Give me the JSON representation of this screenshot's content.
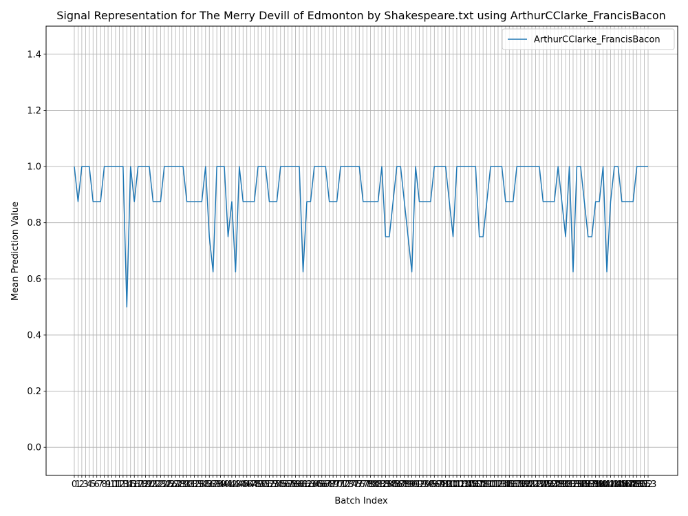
{
  "chart_data": {
    "type": "line",
    "title": "Signal Representation for The Merry Devill of Edmonton by Shakespeare.txt using ArthurCClarke_FrancisBacon",
    "xlabel": "Batch Index",
    "ylabel": "Mean Prediction Value",
    "ylim": [
      -0.1,
      1.5
    ],
    "yticks": [
      "0.0",
      "0.2",
      "0.4",
      "0.6",
      "0.8",
      "1.0",
      "1.2",
      "1.4"
    ],
    "grid": true,
    "legend_position": "top-right",
    "color": "#1f77b4",
    "x_range": [
      0,
      153
    ],
    "series": [
      {
        "name": "ArthurCClarke_FrancisBacon",
        "values": [
          1.0,
          0.875,
          1.0,
          1.0,
          1.0,
          0.875,
          0.875,
          0.875,
          1.0,
          1.0,
          1.0,
          1.0,
          1.0,
          1.0,
          0.5,
          1.0,
          0.875,
          1.0,
          1.0,
          1.0,
          1.0,
          0.875,
          0.875,
          0.875,
          1.0,
          1.0,
          1.0,
          1.0,
          1.0,
          1.0,
          0.875,
          0.875,
          0.875,
          0.875,
          0.875,
          1.0,
          0.75,
          0.625,
          1.0,
          1.0,
          1.0,
          0.75,
          0.875,
          0.625,
          1.0,
          0.875,
          0.875,
          0.875,
          0.875,
          1.0,
          1.0,
          1.0,
          0.875,
          0.875,
          0.875,
          1.0,
          1.0,
          1.0,
          1.0,
          1.0,
          1.0,
          0.625,
          0.875,
          0.875,
          1.0,
          1.0,
          1.0,
          1.0,
          0.875,
          0.875,
          0.875,
          1.0,
          1.0,
          1.0,
          1.0,
          1.0,
          1.0,
          0.875,
          0.875,
          0.875,
          0.875,
          0.875,
          1.0,
          0.75,
          0.75,
          0.875,
          1.0,
          1.0,
          0.875,
          0.75,
          0.625,
          1.0,
          0.875,
          0.875,
          0.875,
          0.875,
          1.0,
          1.0,
          1.0,
          1.0,
          0.875,
          0.75,
          1.0,
          1.0,
          1.0,
          1.0,
          1.0,
          1.0,
          0.75,
          0.75,
          0.875,
          1.0,
          1.0,
          1.0,
          1.0,
          0.875,
          0.875,
          0.875,
          1.0,
          1.0,
          1.0,
          1.0,
          1.0,
          1.0,
          1.0,
          0.875,
          0.875,
          0.875,
          0.875,
          1.0,
          0.875,
          0.75,
          1.0,
          0.625,
          1.0,
          1.0,
          0.875,
          0.75,
          0.75,
          0.875,
          0.875,
          1.0,
          0.625,
          0.875,
          1.0,
          1.0,
          0.875,
          0.875,
          0.875,
          0.875,
          1.0,
          1.0,
          1.0,
          1.0
        ]
      }
    ]
  }
}
